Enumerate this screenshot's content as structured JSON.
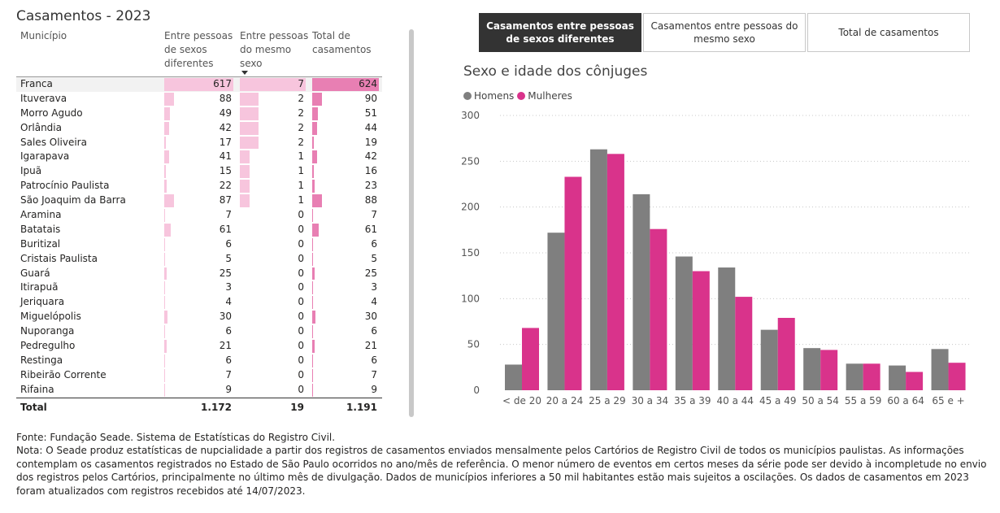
{
  "page_title": "Casamentos - 2023",
  "table": {
    "headers": [
      "Município",
      "Entre pessoas de sexos diferentes",
      "Entre pessoas do mesmo sexo",
      "Total de casamentos"
    ],
    "rows": [
      {
        "municipio": "Franca",
        "diferentes": 617,
        "mesmo": 7,
        "total": 624
      },
      {
        "municipio": "Ituverava",
        "diferentes": 88,
        "mesmo": 2,
        "total": 90
      },
      {
        "municipio": "Morro Agudo",
        "diferentes": 49,
        "mesmo": 2,
        "total": 51
      },
      {
        "municipio": "Orlândia",
        "diferentes": 42,
        "mesmo": 2,
        "total": 44
      },
      {
        "municipio": "Sales Oliveira",
        "diferentes": 17,
        "mesmo": 2,
        "total": 19
      },
      {
        "municipio": "Igarapava",
        "diferentes": 41,
        "mesmo": 1,
        "total": 42
      },
      {
        "municipio": "Ipuã",
        "diferentes": 15,
        "mesmo": 1,
        "total": 16
      },
      {
        "municipio": "Patrocínio Paulista",
        "diferentes": 22,
        "mesmo": 1,
        "total": 23
      },
      {
        "municipio": "São Joaquim da Barra",
        "diferentes": 87,
        "mesmo": 1,
        "total": 88
      },
      {
        "municipio": "Aramina",
        "diferentes": 7,
        "mesmo": 0,
        "total": 7
      },
      {
        "municipio": "Batatais",
        "diferentes": 61,
        "mesmo": 0,
        "total": 61
      },
      {
        "municipio": "Buritizal",
        "diferentes": 6,
        "mesmo": 0,
        "total": 6
      },
      {
        "municipio": "Cristais Paulista",
        "diferentes": 5,
        "mesmo": 0,
        "total": 5
      },
      {
        "municipio": "Guará",
        "diferentes": 25,
        "mesmo": 0,
        "total": 25
      },
      {
        "municipio": "Itirapuã",
        "diferentes": 3,
        "mesmo": 0,
        "total": 3
      },
      {
        "municipio": "Jeriquara",
        "diferentes": 4,
        "mesmo": 0,
        "total": 4
      },
      {
        "municipio": "Miguelópolis",
        "diferentes": 30,
        "mesmo": 0,
        "total": 30
      },
      {
        "municipio": "Nuporanga",
        "diferentes": 6,
        "mesmo": 0,
        "total": 6
      },
      {
        "municipio": "Pedregulho",
        "diferentes": 21,
        "mesmo": 0,
        "total": 21
      },
      {
        "municipio": "Restinga",
        "diferentes": 6,
        "mesmo": 0,
        "total": 6
      },
      {
        "municipio": "Ribeirão Corrente",
        "diferentes": 7,
        "mesmo": 0,
        "total": 7
      },
      {
        "municipio": "Rifaina",
        "diferentes": 9,
        "mesmo": 0,
        "total": 9
      }
    ],
    "total": {
      "label": "Total",
      "diferentes": "1.172",
      "mesmo": "19",
      "total": "1.191"
    },
    "sort_icon": "caret-down-icon",
    "colors": {
      "bar_diferentes": "#f7c5dd",
      "bar_mesmo": "#f7c5dd",
      "bar_total": "#e87fb3",
      "row_highlight": "#f2f2f2"
    }
  },
  "tabs": [
    {
      "label": "Casamentos entre pessoas de sexos diferentes",
      "active": true
    },
    {
      "label": "Casamentos entre pessoas do mesmo sexo",
      "active": false
    },
    {
      "label": "Total de casamentos",
      "active": false
    }
  ],
  "chart_data": {
    "type": "bar",
    "title": "Sexo e idade dos cônjuges",
    "categories": [
      "< de 20",
      "20 a 24",
      "25 a 29",
      "30 a 34",
      "35 a 39",
      "40 a 44",
      "45 a 49",
      "50 a 54",
      "55 a 59",
      "60 a 64",
      "65 e +"
    ],
    "series": [
      {
        "name": "Homens",
        "color": "#7f7f7f",
        "values": [
          28,
          172,
          263,
          214,
          146,
          134,
          66,
          46,
          29,
          27,
          45
        ]
      },
      {
        "name": "Mulheres",
        "color": "#d9338b",
        "values": [
          68,
          233,
          258,
          176,
          130,
          102,
          79,
          44,
          29,
          20,
          30
        ]
      }
    ],
    "ylim": [
      0,
      300
    ],
    "yticks": [
      0,
      50,
      100,
      150,
      200,
      250,
      300
    ],
    "grid": true,
    "legend": "top-left"
  },
  "footnote": {
    "fonte": "Fonte: Fundação Seade. Sistema de Estatísticas do Registro Civil.",
    "nota": "Nota: O Seade produz estatísticas de nupcialidade a partir dos registros de casamentos enviados mensalmente pelos Cartórios de Registro Civil de todos os municípios paulistas. As informações contemplam os casamentos registrados no Estado de São Paulo ocorridos no ano/mês de referência. O menor número de eventos em certos meses da série pode ser devido à incompletude no envio dos registros pelos Cartórios, principalmente no último mês de divulgação. Dados de municípios inferiores a 50 mil habitantes estão mais sujeitos a oscilações. Os dados de casamentos em 2023 foram atualizados com registros recebidos até 14/07/2023."
  }
}
